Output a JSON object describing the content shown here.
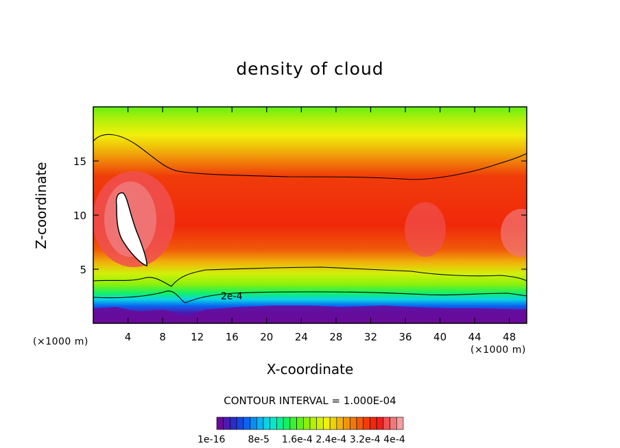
{
  "chart_data": {
    "type": "heatmap",
    "title": "density of cloud",
    "xlabel": "X-coordinate",
    "ylabel": "Z-coordinate",
    "x_unit_label": "(×1000 m)",
    "y_unit_label": "(×1000 m)",
    "xlim": [
      0,
      50
    ],
    "ylim": [
      0,
      20
    ],
    "x_ticks": [
      4,
      8,
      12,
      16,
      20,
      24,
      28,
      32,
      36,
      40,
      44,
      48
    ],
    "y_ticks": [
      5,
      10,
      15
    ],
    "contour_interval_label": "CONTOUR INTERVAL = 1.000E-04",
    "contour_label": "2e-4",
    "colorbar": {
      "min": 1e-16,
      "max": 0.0004,
      "tick_labels": [
        "1e-16",
        "8e-5",
        "1.6e-4",
        "2.4e-4",
        "3.2e-4",
        "4e-4"
      ],
      "colors": [
        "#6a0a9a",
        "#4b1bb0",
        "#2c2cc8",
        "#1646dc",
        "#0a64f0",
        "#0a8cf0",
        "#0ab4f0",
        "#0ad2e6",
        "#0ae6c8",
        "#0af096",
        "#14f064",
        "#3cf032",
        "#64f014",
        "#8cf00a",
        "#b4f00a",
        "#d2f00a",
        "#f0f00a",
        "#f0d20a",
        "#f0b40a",
        "#f0960a",
        "#f0780a",
        "#f05a0a",
        "#f03c0a",
        "#f0280a",
        "#f01e1e",
        "#f05050",
        "#f07878",
        "#f0a0a0"
      ]
    },
    "description_levels": "low cloud density near surface (purple/blue), peak density ~3.2e-4 to 4e-4 in middle layer 5–14 km, lower density aloft (green)"
  }
}
